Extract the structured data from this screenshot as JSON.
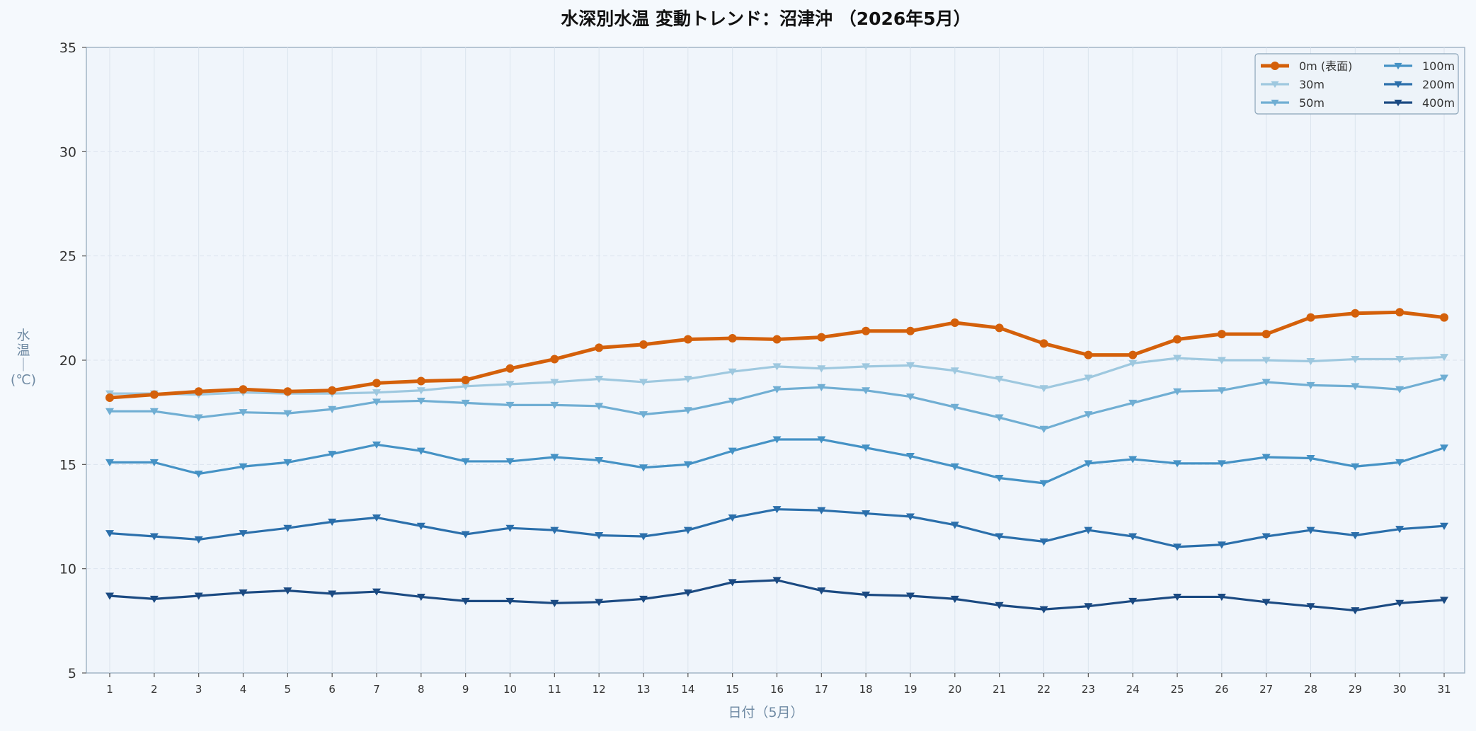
{
  "chart_data": {
    "type": "line",
    "title": "水深別水温 変動トレンド：沼津沖 （2026年5月）",
    "xlabel": "日付（5月）",
    "ylabel": "水温（℃）",
    "ylabel_chars": [
      "水",
      "温",
      "｜",
      "(℃)"
    ],
    "x": [
      1,
      2,
      3,
      4,
      5,
      6,
      7,
      8,
      9,
      10,
      11,
      12,
      13,
      14,
      15,
      16,
      17,
      18,
      19,
      20,
      21,
      22,
      23,
      24,
      25,
      26,
      27,
      28,
      29,
      30,
      31
    ],
    "x_ticks": [
      "1",
      "2",
      "3",
      "4",
      "5",
      "6",
      "7",
      "8",
      "9",
      "10",
      "11",
      "12",
      "13",
      "14",
      "15",
      "16",
      "17",
      "18",
      "19",
      "20",
      "21",
      "22",
      "23",
      "24",
      "25",
      "26",
      "27",
      "28",
      "29",
      "30",
      "31"
    ],
    "ylim": [
      5,
      35
    ],
    "y_ticks": [
      "5",
      "10",
      "15",
      "20",
      "25",
      "30",
      "35"
    ],
    "grid": true,
    "legend_position": "top-right",
    "series": [
      {
        "name": "0m (表面)",
        "color": "#d4600a",
        "marker": "circle",
        "values": [
          18.2,
          18.35,
          18.5,
          18.6,
          18.5,
          18.55,
          18.9,
          19.0,
          19.05,
          19.6,
          20.05,
          20.6,
          20.75,
          21.0,
          21.05,
          21.0,
          21.1,
          21.4,
          21.4,
          21.8,
          21.55,
          20.8,
          20.25,
          20.25,
          21.0,
          21.25,
          21.25,
          22.05,
          22.25,
          22.3,
          22.05
        ]
      },
      {
        "name": "30m",
        "color": "#9ec8df",
        "marker": "triangle",
        "values": [
          18.4,
          18.4,
          18.35,
          18.45,
          18.4,
          18.4,
          18.45,
          18.55,
          18.75,
          18.85,
          18.95,
          19.1,
          18.95,
          19.1,
          19.45,
          19.7,
          19.6,
          19.7,
          19.75,
          19.5,
          19.1,
          18.65,
          19.15,
          19.85,
          20.1,
          20.0,
          20.0,
          19.95,
          20.05,
          20.05,
          20.15
        ]
      },
      {
        "name": "50m",
        "color": "#70aed3",
        "marker": "triangle",
        "values": [
          17.55,
          17.55,
          17.25,
          17.5,
          17.45,
          17.65,
          18.0,
          18.05,
          17.95,
          17.85,
          17.85,
          17.8,
          17.4,
          17.6,
          18.05,
          18.6,
          18.7,
          18.55,
          18.25,
          17.75,
          17.25,
          16.7,
          17.4,
          17.95,
          18.5,
          18.55,
          18.95,
          18.8,
          18.75,
          18.6,
          19.15
        ]
      },
      {
        "name": "100m",
        "color": "#4592c5",
        "marker": "triangle",
        "values": [
          15.1,
          15.1,
          14.55,
          14.9,
          15.1,
          15.5,
          15.95,
          15.65,
          15.15,
          15.15,
          15.35,
          15.2,
          14.85,
          15.0,
          15.65,
          16.2,
          16.2,
          15.8,
          15.4,
          14.9,
          14.35,
          14.1,
          15.05,
          15.25,
          15.05,
          15.05,
          15.35,
          15.3,
          14.9,
          15.1,
          15.8
        ]
      },
      {
        "name": "200m",
        "color": "#2b6fab",
        "marker": "triangle",
        "values": [
          11.7,
          11.55,
          11.4,
          11.7,
          11.95,
          12.25,
          12.45,
          12.05,
          11.65,
          11.95,
          11.85,
          11.6,
          11.55,
          11.85,
          12.45,
          12.85,
          12.8,
          12.65,
          12.5,
          12.1,
          11.55,
          11.3,
          11.85,
          11.55,
          11.05,
          11.15,
          11.55,
          11.85,
          11.6,
          11.9,
          12.05
        ]
      },
      {
        "name": "400m",
        "color": "#1b4a82",
        "marker": "triangle",
        "values": [
          8.7,
          8.55,
          8.7,
          8.85,
          8.95,
          8.8,
          8.9,
          8.65,
          8.45,
          8.45,
          8.35,
          8.4,
          8.55,
          8.85,
          9.35,
          9.45,
          8.95,
          8.75,
          8.7,
          8.55,
          8.25,
          8.05,
          8.2,
          8.45,
          8.65,
          8.65,
          8.4,
          8.2,
          8.0,
          8.35,
          8.5
        ]
      }
    ]
  }
}
